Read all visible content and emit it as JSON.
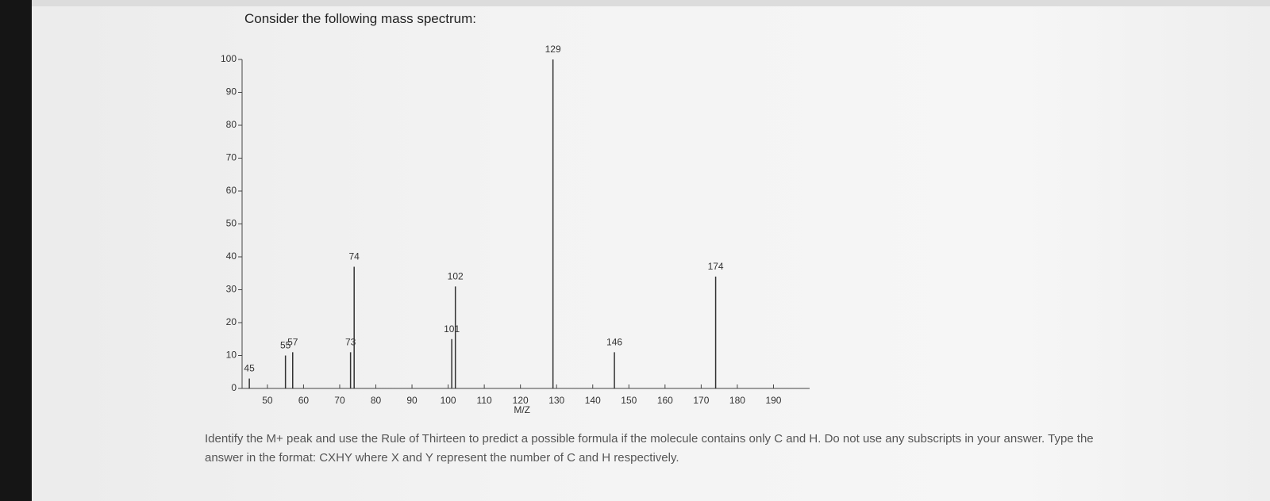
{
  "chart_data": {
    "type": "bar",
    "title": "Consider the following mass spectrum:",
    "xlabel": "M/Z",
    "x": [
      45,
      55,
      57,
      73,
      74,
      101,
      102,
      129,
      146,
      174
    ],
    "values": [
      3,
      10,
      11,
      11,
      37,
      15,
      31,
      100,
      11,
      34
    ],
    "color": "#333333",
    "xlim": [
      43,
      200
    ],
    "xticks": [
      50,
      60,
      70,
      80,
      90,
      100,
      110,
      120,
      130,
      140,
      150,
      160,
      170,
      180,
      190
    ],
    "ylim": [
      0,
      100
    ],
    "yticks": [
      0,
      10,
      20,
      30,
      40,
      50,
      60,
      70,
      80,
      90,
      100
    ]
  },
  "question": "Identify the M+ peak and use the Rule of Thirteen to predict a possible formula if the molecule contains only C and H. Do not use any subscripts in your answer. Type the answer in the format: CXHY where X and Y represent the number of C and H respectively."
}
